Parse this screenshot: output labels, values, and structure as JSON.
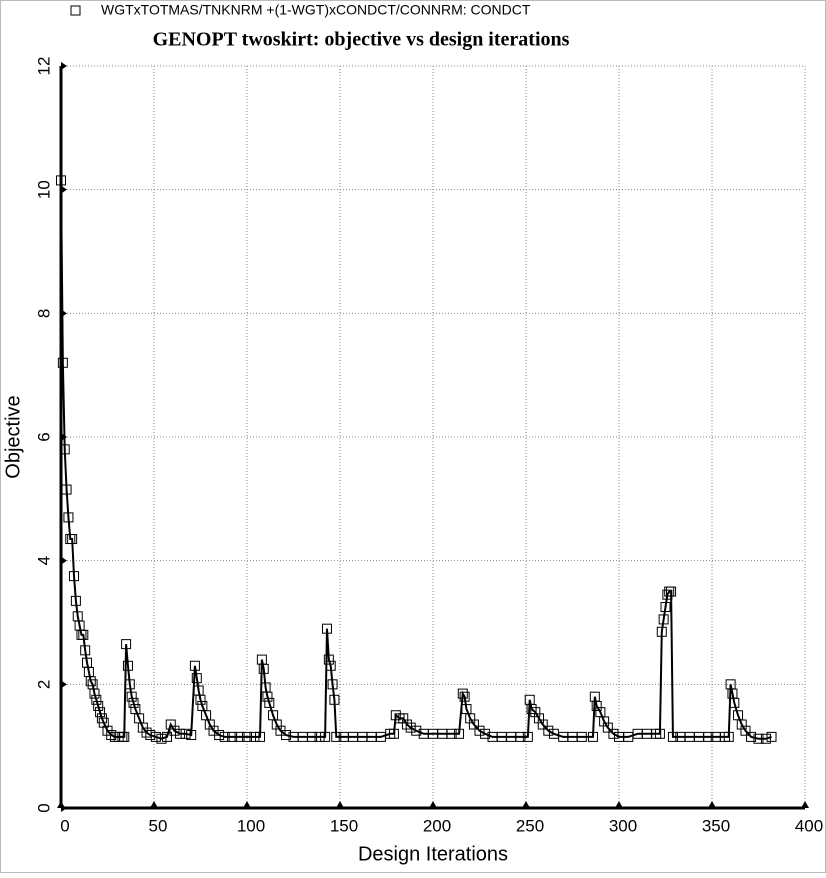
{
  "chart_data": {
    "type": "line",
    "title": "GENOPT twoskirt: objective vs design iterations",
    "x_label": "Design Iterations",
    "y_label": "Objective",
    "xlim": [
      0,
      400
    ],
    "xticks": [
      0,
      50,
      100,
      150,
      200,
      250,
      300,
      350,
      400
    ],
    "ylim": [
      0,
      12
    ],
    "yticks": [
      0,
      2,
      4,
      6,
      8,
      10,
      12
    ],
    "grid": true,
    "series": [
      {
        "name": "WGTxTOTMAS/TNKNRM +(1-WGT)xCONDCT/CONNRM: CONDCT",
        "color": "#000000",
        "x": [
          0,
          1,
          2,
          3,
          4,
          5,
          6,
          7,
          8,
          9,
          10,
          11,
          12,
          13,
          14,
          15,
          16,
          17,
          18,
          19,
          20,
          21,
          22,
          23,
          25,
          27,
          29,
          31,
          33,
          34,
          35,
          36,
          37,
          38,
          39,
          40,
          42,
          44,
          46,
          48,
          51,
          54,
          57,
          59,
          61,
          64,
          67,
          70,
          72,
          73,
          74,
          75,
          76,
          78,
          80,
          82,
          85,
          88,
          92,
          96,
          100,
          104,
          107,
          108,
          109,
          110,
          111,
          112,
          114,
          116,
          118,
          121,
          125,
          130,
          135,
          139,
          142,
          143,
          144,
          145,
          146,
          147,
          148,
          152,
          157,
          162,
          167,
          172,
          177,
          179,
          180,
          182,
          184,
          186,
          188,
          191,
          195,
          200,
          205,
          210,
          214,
          216,
          217,
          218,
          220,
          222,
          225,
          228,
          232,
          237,
          242,
          247,
          251,
          252,
          253,
          255,
          257,
          259,
          262,
          265,
          270,
          275,
          280,
          286,
          287,
          288,
          290,
          292,
          294,
          297,
          300,
          305,
          310,
          315,
          320,
          322,
          323,
          324,
          325,
          326,
          327,
          328,
          329,
          333,
          338,
          343,
          348,
          352,
          357,
          359,
          360,
          361,
          362,
          364,
          366,
          368,
          371,
          375,
          379,
          382
        ],
        "values": [
          10.15,
          7.2,
          5.8,
          5.15,
          4.7,
          4.35,
          4.35,
          3.75,
          3.35,
          3.1,
          2.95,
          2.8,
          2.8,
          2.55,
          2.35,
          2.2,
          2.05,
          2.0,
          1.85,
          1.75,
          1.65,
          1.55,
          1.45,
          1.38,
          1.25,
          1.18,
          1.15,
          1.15,
          1.15,
          1.15,
          2.65,
          2.3,
          2.0,
          1.8,
          1.7,
          1.6,
          1.45,
          1.3,
          1.22,
          1.18,
          1.15,
          1.12,
          1.15,
          1.35,
          1.25,
          1.2,
          1.2,
          1.18,
          2.3,
          2.1,
          1.9,
          1.75,
          1.65,
          1.5,
          1.35,
          1.25,
          1.18,
          1.15,
          1.15,
          1.15,
          1.15,
          1.15,
          1.15,
          2.4,
          2.25,
          1.95,
          1.8,
          1.7,
          1.5,
          1.35,
          1.25,
          1.18,
          1.15,
          1.15,
          1.15,
          1.15,
          1.15,
          2.9,
          2.4,
          2.3,
          2.0,
          1.75,
          1.15,
          1.15,
          1.15,
          1.15,
          1.15,
          1.15,
          1.2,
          1.2,
          1.5,
          1.45,
          1.45,
          1.35,
          1.3,
          1.25,
          1.2,
          1.2,
          1.2,
          1.2,
          1.2,
          1.85,
          1.8,
          1.6,
          1.45,
          1.35,
          1.25,
          1.2,
          1.15,
          1.15,
          1.15,
          1.15,
          1.15,
          1.75,
          1.6,
          1.55,
          1.45,
          1.35,
          1.25,
          1.2,
          1.15,
          1.15,
          1.15,
          1.15,
          1.8,
          1.65,
          1.55,
          1.4,
          1.3,
          1.2,
          1.15,
          1.15,
          1.2,
          1.2,
          1.2,
          1.2,
          2.85,
          3.05,
          3.25,
          3.45,
          3.5,
          3.5,
          1.15,
          1.15,
          1.15,
          1.15,
          1.15,
          1.15,
          1.15,
          1.15,
          2.0,
          1.85,
          1.7,
          1.5,
          1.35,
          1.25,
          1.15,
          1.12,
          1.12,
          1.15
        ]
      }
    ]
  }
}
